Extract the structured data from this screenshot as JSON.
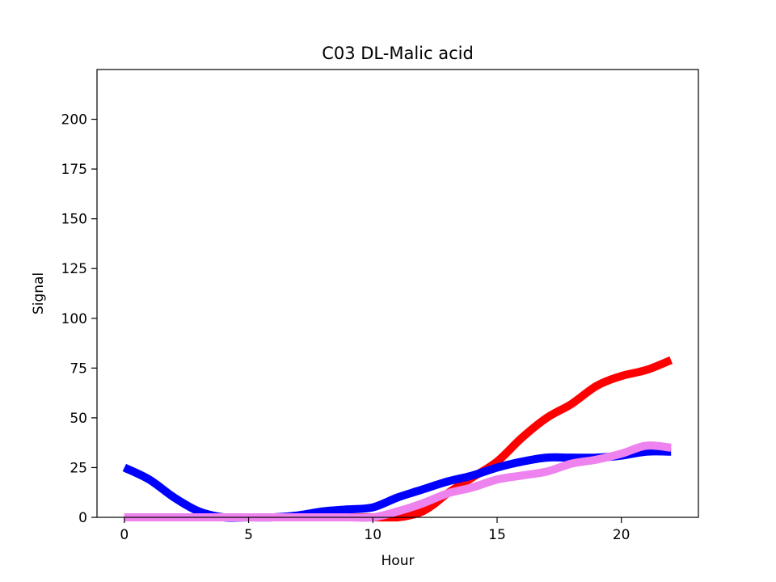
{
  "chart_data": {
    "type": "line",
    "title": "C03 DL-Malic acid",
    "xlabel": "Hour",
    "ylabel": "Signal",
    "xlim": [
      -1.1,
      23.1
    ],
    "ylim": [
      0,
      225
    ],
    "xticks": [
      0,
      5,
      10,
      15,
      20
    ],
    "yticks": [
      0,
      25,
      50,
      75,
      100,
      125,
      150,
      175,
      200
    ],
    "grid": false,
    "legend": "none",
    "series": [
      {
        "color": "#ff0000",
        "x": [
          0,
          1,
          2,
          3,
          4,
          5,
          6,
          7,
          8,
          9,
          10,
          11,
          11.5,
          12,
          12.5,
          13,
          14,
          15,
          16,
          17,
          18,
          19,
          20,
          21,
          22
        ],
        "y": [
          0,
          0,
          0,
          0,
          0,
          0,
          0,
          0,
          0,
          0,
          0,
          0,
          1,
          3,
          7,
          12,
          20,
          28,
          40,
          50,
          57,
          66,
          71,
          74,
          79
        ]
      },
      {
        "color": "#0000ff",
        "x": [
          0,
          1,
          2,
          3,
          4,
          5,
          6,
          7,
          8,
          9,
          10,
          11,
          12,
          13,
          14,
          15,
          16,
          17,
          18,
          19,
          20,
          21,
          22
        ],
        "y": [
          25,
          19,
          10,
          3,
          0,
          0,
          0,
          1,
          3,
          4,
          5,
          10,
          14,
          18,
          21,
          25,
          28,
          30,
          30,
          30,
          31,
          33,
          33
        ]
      },
      {
        "color": "#ee82ee",
        "x": [
          0,
          1,
          2,
          3,
          4,
          5,
          6,
          7,
          8,
          9,
          10,
          11,
          12,
          13,
          14,
          15,
          16,
          17,
          18,
          19,
          20,
          21,
          22
        ],
        "y": [
          0,
          0,
          0,
          0,
          0,
          0,
          0,
          0,
          0,
          0,
          0,
          3,
          7,
          12,
          15,
          19,
          21,
          23,
          27,
          29,
          32,
          36,
          35
        ]
      }
    ]
  }
}
